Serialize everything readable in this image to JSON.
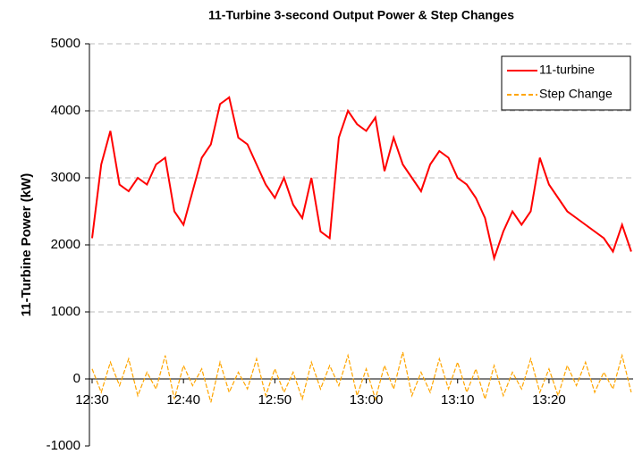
{
  "chart_data": {
    "type": "line",
    "title": "11-Turbine 3-second Output Power & Step Changes",
    "y_label": "11-Turbine Power (kW)",
    "x": [
      "12:30",
      "12:31",
      "12:32",
      "12:33",
      "12:34",
      "12:35",
      "12:36",
      "12:37",
      "12:38",
      "12:39",
      "12:40",
      "12:41",
      "12:42",
      "12:43",
      "12:44",
      "12:45",
      "12:46",
      "12:47",
      "12:48",
      "12:49",
      "12:50",
      "12:51",
      "12:52",
      "12:53",
      "12:54",
      "12:55",
      "12:56",
      "12:57",
      "12:58",
      "12:59",
      "13:00",
      "13:01",
      "13:02",
      "13:03",
      "13:04",
      "13:05",
      "13:06",
      "13:07",
      "13:08",
      "13:09",
      "13:10",
      "13:11",
      "13:12",
      "13:13",
      "13:14",
      "13:15",
      "13:16",
      "13:17",
      "13:18",
      "13:19",
      "13:20",
      "13:21",
      "13:22",
      "13:23",
      "13:24",
      "13:25",
      "13:26",
      "13:27",
      "13:28",
      "13:29"
    ],
    "series": [
      {
        "name": "11-turbine",
        "color": "#ff0000",
        "dash": false,
        "values": [
          2100,
          3200,
          3700,
          2900,
          2800,
          3000,
          2900,
          3200,
          3300,
          2500,
          2300,
          2800,
          3300,
          3500,
          4100,
          4200,
          3600,
          3500,
          3200,
          2900,
          2700,
          3000,
          2600,
          2400,
          3000,
          2200,
          2100,
          3600,
          4000,
          3800,
          3700,
          3900,
          3100,
          3600,
          3200,
          3000,
          2800,
          3200,
          3400,
          3300,
          3000,
          2900,
          2700,
          2400,
          1800,
          2200,
          2500,
          2300,
          2500,
          3300,
          2900,
          2700,
          2500,
          2400,
          2300,
          2200,
          2100,
          1900,
          2300,
          1900
        ]
      },
      {
        "name": "Step Change",
        "color": "#ffa500",
        "dash": true,
        "values": [
          150,
          -200,
          250,
          -100,
          300,
          -250,
          100,
          -150,
          350,
          -300,
          200,
          -100,
          150,
          -350,
          250,
          -200,
          100,
          -150,
          300,
          -250,
          150,
          -200,
          100,
          -300,
          250,
          -150,
          200,
          -100,
          350,
          -250,
          150,
          -300,
          200,
          -150,
          400,
          -250,
          100,
          -200,
          300,
          -150,
          250,
          -200,
          150,
          -300,
          200,
          -250,
          100,
          -150,
          300,
          -200,
          150,
          -250,
          200,
          -100,
          250,
          -200,
          100,
          -150,
          350,
          -200
        ]
      }
    ],
    "ylim": [
      -1000,
      5000
    ],
    "yticks": [
      -1000,
      0,
      1000,
      2000,
      3000,
      4000,
      5000
    ],
    "xticks": [
      "12:30",
      "12:40",
      "12:50",
      "13:00",
      "13:10",
      "13:20"
    ],
    "grid": true,
    "legend": "upper right"
  }
}
